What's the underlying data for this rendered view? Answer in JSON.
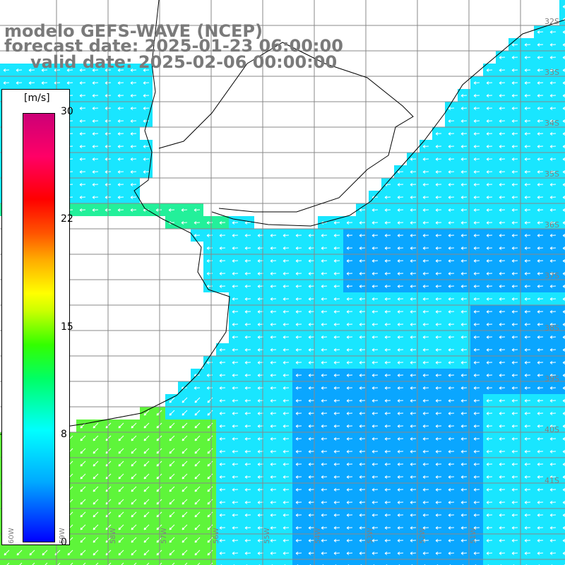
{
  "title": {
    "model": "modelo GEFS-WAVE (NCEP)",
    "forecast_date": "forecast date: 2025-01-23 06:00:00",
    "valid_date": "valid date: 2025-02-06 00:00:00"
  },
  "colorbar": {
    "units": "[m/s]",
    "ticks": [
      "30",
      "22",
      "15",
      "8",
      "0"
    ],
    "colors": [
      "#0000ff",
      "#00aaff",
      "#00ffff",
      "#00ff66",
      "#ccff00",
      "#ffff00",
      "#ff5500",
      "#ff0000",
      "#cc0077"
    ]
  },
  "grid": {
    "lat_labels": [
      "32S",
      "33S",
      "34S",
      "35S",
      "36S",
      "37S",
      "38S",
      "39S",
      "40S",
      "41S"
    ],
    "lon_labels": [
      "60W",
      "59W",
      "58W",
      "57W",
      "56W",
      "55W",
      "54W",
      "53W",
      "52W",
      "51W"
    ]
  },
  "field": {
    "variable": "wind speed",
    "land_color": "#ffffff",
    "sea_colors": {
      "low": "#0aa6ff",
      "mid": "#19e6ff",
      "high": "#23f09a",
      "strong": "#5ef53a"
    }
  }
}
